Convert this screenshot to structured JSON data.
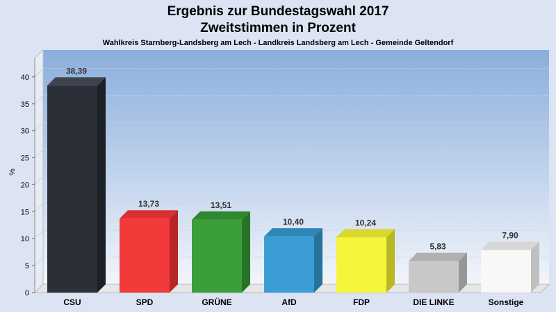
{
  "chart_data": {
    "type": "bar",
    "title": "Ergebnis zur Bundestagswahl 2017",
    "title_line2": "Zweitstimmen in Prozent",
    "subtitle": "Wahlkreis Starnberg-Landsberg am Lech - Landkreis Landsberg am Lech - Gemeinde Geltendorf",
    "ylabel": "%",
    "xlabel": "",
    "ylim": [
      0,
      45
    ],
    "yticks": [
      "0",
      "5",
      "10",
      "15",
      "20",
      "25",
      "30",
      "35",
      "40"
    ],
    "grid": true,
    "categories": [
      "CSU",
      "SPD",
      "GRÜNE",
      "AfD",
      "FDP",
      "DIE LINKE",
      "Sonstige"
    ],
    "values": [
      38.39,
      13.73,
      13.51,
      10.4,
      10.24,
      5.83,
      7.9
    ],
    "value_labels": [
      "38,39",
      "13,73",
      "13,51",
      "10,40",
      "10,24",
      "5,83",
      "7,90"
    ],
    "colors": [
      "#2b2f38",
      "#f23a3a",
      "#3a9e3a",
      "#3a9ed4",
      "#f5f53a",
      "#c8c8c8",
      "#f8f8f8"
    ],
    "colors_side": [
      "#1c1f26",
      "#b82626",
      "#267326",
      "#25729c",
      "#b8b822",
      "#969696",
      "#c0c0c0"
    ],
    "colors_top": [
      "#3e434e",
      "#d83030",
      "#2f872f",
      "#2f86b8",
      "#d8d82e",
      "#b0b0b0",
      "#d6d6d6"
    ]
  }
}
